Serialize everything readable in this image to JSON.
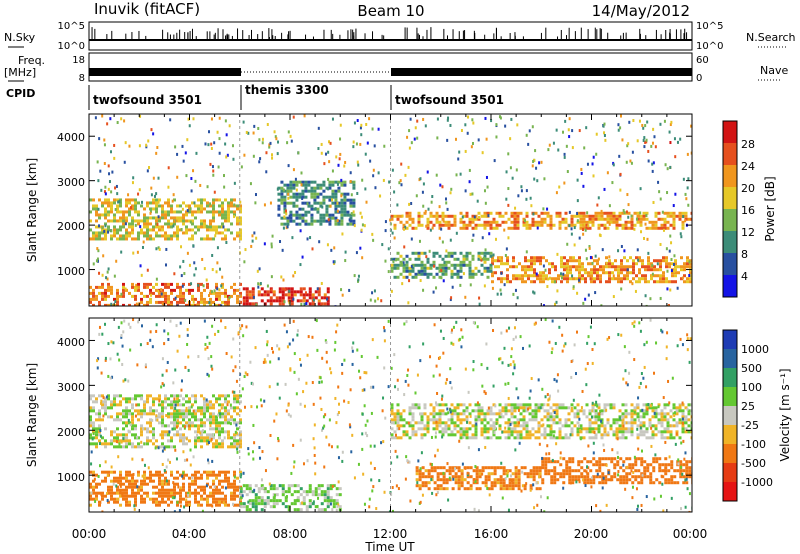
{
  "header": {
    "station": "Inuvik (fitACF)",
    "beam": "Beam 10",
    "date": "14/May/2012"
  },
  "strips": {
    "nsky_label": "N.Sky",
    "nsky_ticks": [
      "10^5",
      "10^0"
    ],
    "nsearch_label": "N.Search",
    "nsearch_ticks": [
      "10^5",
      "10^0"
    ],
    "freq_label": "Freq.",
    "freq_unit": "[MHz]",
    "freq_ticks": [
      "18",
      "8"
    ],
    "nave_label": "Nave",
    "nave_ticks": [
      "60",
      "0"
    ],
    "cpid_label": "CPID",
    "cpid_segments": [
      {
        "name": "twofsound 3501",
        "start_h": 0,
        "end_h": 6
      },
      {
        "name": "themis 3300",
        "start_h": 6,
        "end_h": 12
      },
      {
        "name": "twofsound 3501",
        "start_h": 12,
        "end_h": 24
      }
    ]
  },
  "chart_data": [
    {
      "type": "heatmap",
      "panel": "power",
      "ylabel": "Slant Range [km]",
      "ylim": [
        180,
        4500
      ],
      "yticks": [
        "1000",
        "2000",
        "3000",
        "4000"
      ],
      "xlim_hours": [
        0,
        24
      ],
      "colorbar_label": "Power [dB]",
      "colorbar_ticks": [
        "4",
        "8",
        "12",
        "16",
        "20",
        "24",
        "28"
      ],
      "colorbar_colors": [
        "#1414e6",
        "#2850a0",
        "#3c8c78",
        "#78b450",
        "#e6c828",
        "#f0961e",
        "#e6501e",
        "#d21414"
      ],
      "echo_bands": [
        {
          "t_start": 0,
          "t_end": 6,
          "range_km": [
            220,
            700
          ],
          "level": 24
        },
        {
          "t_start": 6,
          "t_end": 9.5,
          "range_km": [
            200,
            600
          ],
          "level": 28
        },
        {
          "t_start": 0,
          "t_end": 6,
          "range_km": [
            1700,
            2600
          ],
          "level": 18
        },
        {
          "t_start": 12,
          "t_end": 24,
          "range_km": [
            1900,
            2300
          ],
          "level": 22
        },
        {
          "t_start": 16,
          "t_end": 24,
          "range_km": [
            700,
            1300
          ],
          "level": 22
        },
        {
          "t_start": 12,
          "t_end": 16,
          "range_km": [
            800,
            1400
          ],
          "level": 12
        },
        {
          "t_start": 7.5,
          "t_end": 10.5,
          "range_km": [
            2000,
            3000
          ],
          "level": 10
        }
      ]
    },
    {
      "type": "heatmap",
      "panel": "velocity",
      "ylabel": "Slant Range [km]",
      "xlabel": "Time UT",
      "ylim": [
        180,
        4500
      ],
      "yticks": [
        "1000",
        "2000",
        "3000",
        "4000"
      ],
      "xlim_hours": [
        0,
        24
      ],
      "xticks": [
        "00:00",
        "04:00",
        "08:00",
        "12:00",
        "16:00",
        "20:00",
        "00:00"
      ],
      "colorbar_label": "Velocity [m s⁻¹]",
      "colorbar_ticks": [
        "1000",
        "500",
        "100",
        "25",
        "-25",
        "-100",
        "-500",
        "-1000"
      ],
      "colorbar_colors": [
        "#1e3cb4",
        "#2864a0",
        "#32a064",
        "#64c832",
        "#c8c8c0",
        "#f0b428",
        "#f07814",
        "#e63c14",
        "#e61414"
      ],
      "echo_bands": [
        {
          "t_start": 0,
          "t_end": 6,
          "range_km": [
            300,
            1100
          ],
          "velocity": -150
        },
        {
          "t_start": 0,
          "t_end": 6,
          "range_km": [
            1600,
            2800
          ],
          "velocity": 0
        },
        {
          "t_start": 6,
          "t_end": 10,
          "range_km": [
            200,
            800
          ],
          "velocity": 50
        },
        {
          "t_start": 12,
          "t_end": 24,
          "range_km": [
            1800,
            2600
          ],
          "velocity": 0
        },
        {
          "t_start": 18,
          "t_end": 24,
          "range_km": [
            800,
            1400
          ],
          "velocity": -400
        },
        {
          "t_start": 13,
          "t_end": 18,
          "range_km": [
            700,
            1200
          ],
          "velocity": -150
        }
      ]
    }
  ]
}
